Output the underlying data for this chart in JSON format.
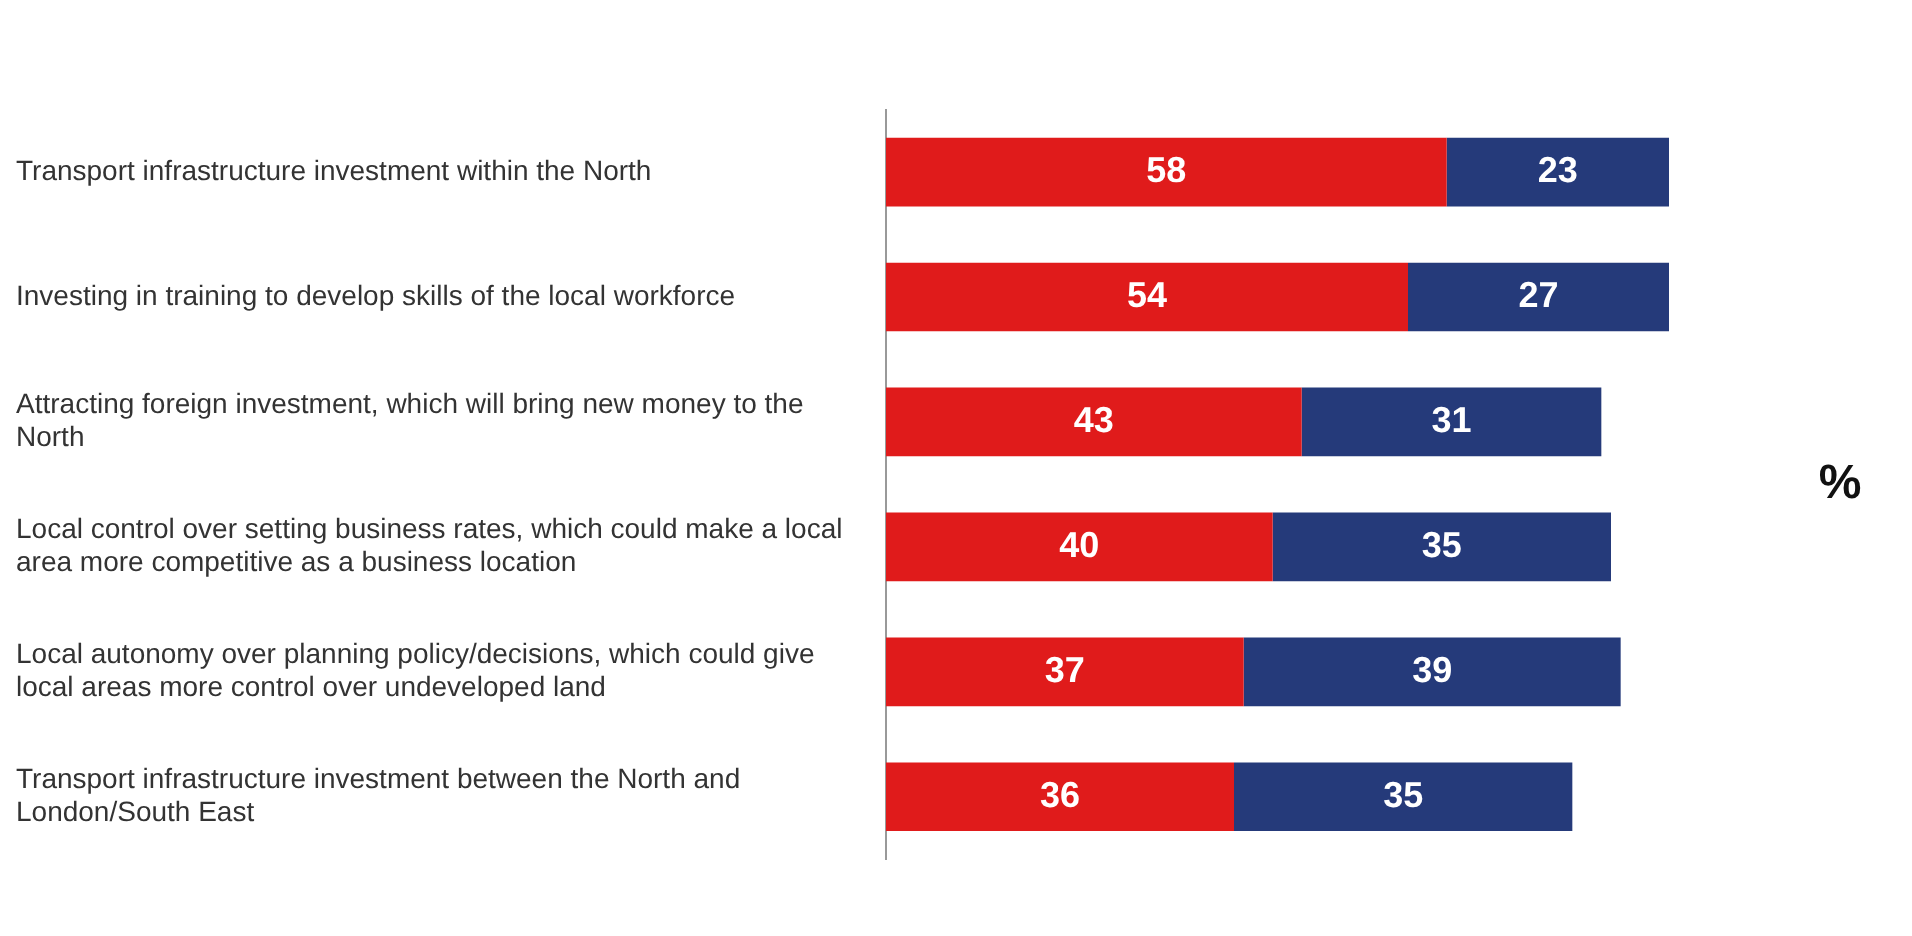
{
  "chart_data": {
    "type": "bar",
    "orientation": "horizontal",
    "stacked": true,
    "data_labels": true,
    "legend": false,
    "tick_labels": "y",
    "categories": [
      "Transport infrastructure investment within the North",
      "Investing in training to develop skills of the local workforce",
      "Attracting foreign investment, which will bring new money to the North",
      "Local control over setting business rates, which could make a local area more competitive as a business location",
      "Local autonomy over planning policy/decisions, which could give local areas more control over undeveloped land",
      "Transport infrastructure investment between the North and London/South East"
    ],
    "series": [
      {
        "color": "#e01b1b",
        "values": [
          58,
          54,
          43,
          40,
          37,
          36
        ]
      },
      {
        "color": "#253a7a",
        "values": [
          23,
          27,
          31,
          35,
          39,
          35
        ]
      }
    ],
    "annotations": [
      "%"
    ]
  }
}
